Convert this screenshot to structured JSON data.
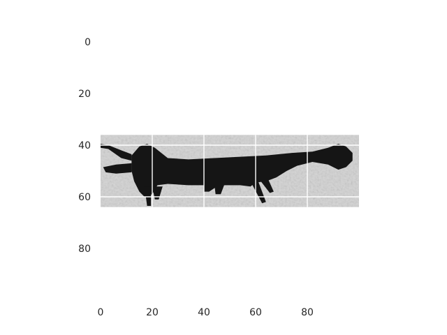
{
  "chart_data": {
    "type": "heatmap",
    "title": "",
    "xlabel": "",
    "ylabel": "",
    "colormap": "grayscale",
    "image_extent": {
      "x": [
        0,
        100
      ],
      "y": [
        36,
        64
      ]
    },
    "xlim": [
      0,
      100
    ],
    "ylim": [
      100,
      0
    ],
    "x_ticks": [
      0,
      20,
      40,
      60,
      80
    ],
    "y_ticks": [
      0,
      20,
      40,
      60,
      80
    ],
    "grid": true,
    "grid_color": "#ffffff",
    "background_color": "#ffffff",
    "image_background_color": "#d2d2d2",
    "figure_color": "#151515",
    "figure_description_of_values": "dark elongated animal-like silhouette spanning x 0-98 at y 38-62"
  }
}
